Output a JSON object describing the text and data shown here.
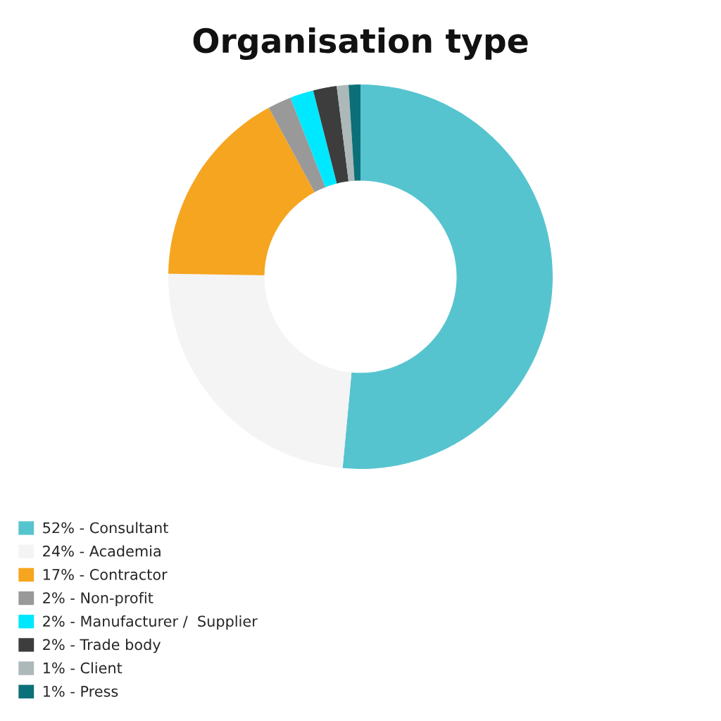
{
  "chart_data": {
    "type": "donut",
    "title": "Organisation type",
    "categories": [
      "52% - Consultant",
      "24% - Academia",
      "17% - Contractor",
      "2% - Non-profit",
      "2% - Manufacturer /  Supplier",
      "2% - Trade body",
      "1% - Client",
      "1% - Press"
    ],
    "values": [
      52,
      24,
      17,
      2,
      2,
      2,
      1,
      1
    ],
    "colors": [
      "#56c4cf",
      "#f4f4f4",
      "#f6a520",
      "#999999",
      "#00e8ff",
      "#3d3d3d",
      "#adb8b8",
      "#0c7078"
    ],
    "legend": "bottom left"
  }
}
